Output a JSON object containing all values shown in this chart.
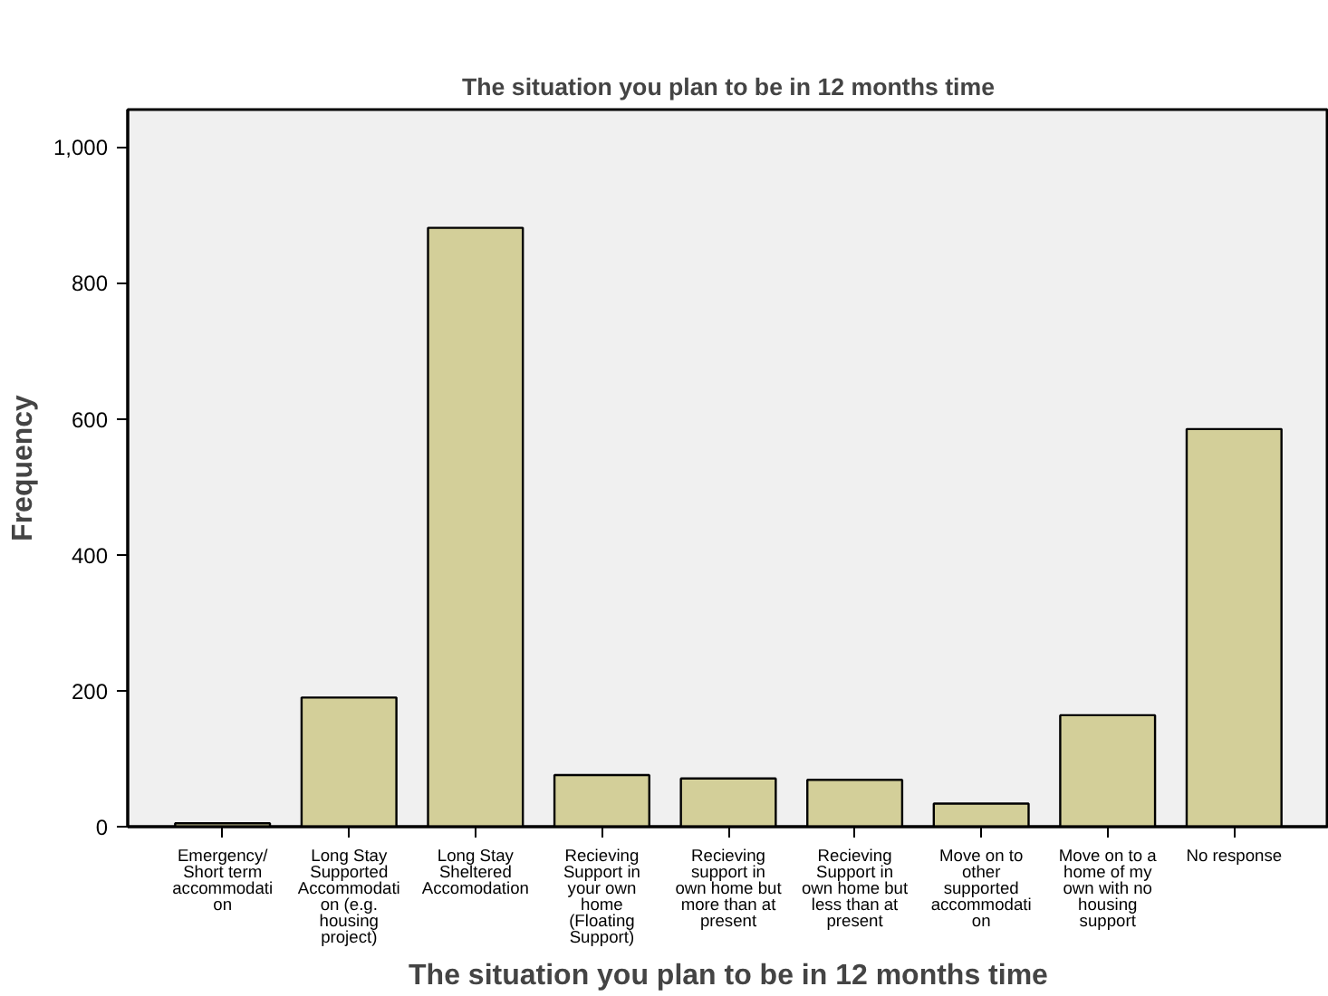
{
  "chart_data": {
    "type": "bar",
    "title": "The situation you plan to be in 12 months time",
    "xlabel": "The situation you plan to be in 12 months time",
    "ylabel": "Frequency",
    "categories": [
      "Emergency/\nShort term\naccommodati\non",
      "Long Stay\nSupported\nAccommodati\non (e.g.\nhousing\nproject)",
      "Long Stay\nSheltered\nAccomodation",
      "Recieving\nSupport in\nyour own\nhome\n(Floating\nSupport)",
      "Recieving\nsupport in\nown home but\nmore than at\npresent",
      "Recieving\nSupport in\nown home but\nless than at\npresent",
      "Move on to\nother\nsupported\naccommodati\non",
      "Move on to a\nhome of my\nown with no\nhousing\nsupport",
      "No response"
    ],
    "values": [
      5,
      190,
      881,
      76,
      71,
      69,
      34,
      164,
      585
    ],
    "color": "#d3cf99",
    "ylim": [
      0,
      1055
    ],
    "yticks": [
      0,
      {
        "value": 200,
        "label": "200"
      },
      {
        "value": 400,
        "label": "400"
      },
      {
        "value": 600,
        "label": "600"
      },
      {
        "value": 800,
        "label": "800"
      },
      {
        "value": 1000,
        "label": "1,000"
      }
    ],
    "grid": false
  }
}
